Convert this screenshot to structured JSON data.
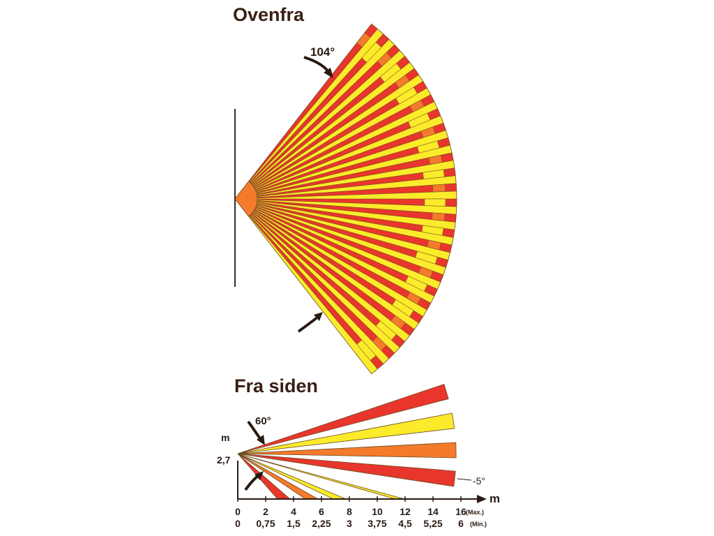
{
  "top_view": {
    "title": "Ovenfra",
    "angle_label": "104°"
  },
  "side_view": {
    "title": "Fra  siden",
    "angle_label": "60°",
    "tilt_label": "-5°",
    "height_unit": "m",
    "height_label": "2,7",
    "axis_unit": "m",
    "max_ticks": [
      "0",
      "2",
      "4",
      "6",
      "8",
      "10",
      "12",
      "14",
      "16"
    ],
    "min_ticks": [
      "0",
      "0,75",
      "1,5",
      "2,25",
      "3",
      "3,75",
      "4,5",
      "5,25",
      "6"
    ],
    "max_label": "(Max.)",
    "min_label": "(Min.)"
  },
  "colors": {
    "red": "#e8362c",
    "yellow": "#fbeb2a",
    "orange": "#f47a2c",
    "origin": "#f47a2c",
    "stroke": "#6b4a1e",
    "ink": "#2a1a12"
  }
}
